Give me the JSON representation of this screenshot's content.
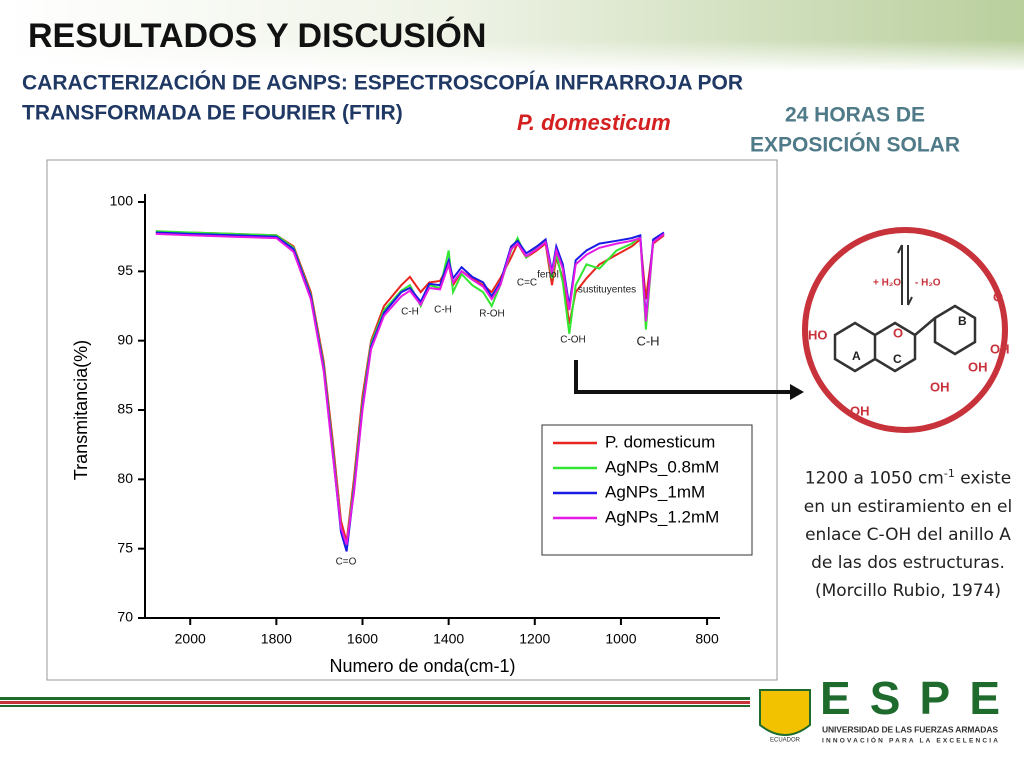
{
  "header": {
    "title": "RESULTADOS Y DISCUSIÓN",
    "subtitle_lines": [
      "CARACTERIZACIÓN DE AGNPS: ESPECTROSCOPÍA INFRARROJA POR",
      "TRANSFORMADA DE FOURIER (FTIR)"
    ],
    "species": "P. domesticum",
    "exposure_lines": [
      "24 HORAS DE",
      "EXPOSICIÓN SOLAR"
    ]
  },
  "chart_data": {
    "type": "line",
    "x": [
      2080,
      2000,
      1900,
      1800,
      1760,
      1720,
      1690,
      1670,
      1650,
      1637,
      1620,
      1600,
      1580,
      1550,
      1510,
      1490,
      1465,
      1445,
      1420,
      1400,
      1390,
      1370,
      1345,
      1320,
      1300,
      1280,
      1255,
      1240,
      1220,
      1195,
      1175,
      1160,
      1150,
      1135,
      1120,
      1105,
      1080,
      1050,
      1010,
      975,
      955,
      942,
      925,
      900
    ],
    "series": [
      {
        "name": "P. domesticum",
        "color": "#e8261f",
        "values": [
          97.8,
          97.8,
          97.7,
          97.6,
          96.8,
          93.5,
          88.5,
          83,
          77,
          75.5,
          80,
          86,
          90,
          92.5,
          94,
          94.6,
          93.5,
          94.2,
          94.3,
          95.5,
          94,
          95,
          94.5,
          94,
          93.5,
          94.5,
          96,
          97,
          96,
          96.5,
          97,
          94,
          96,
          94.5,
          91.2,
          93.5,
          94.5,
          95.5,
          96.2,
          96.8,
          97.3,
          93,
          97,
          97.6
        ]
      },
      {
        "name": "AgNPs_0.8mM",
        "color": "#33e633",
        "values": [
          97.9,
          97.8,
          97.7,
          97.6,
          96.7,
          93.3,
          88.2,
          82.5,
          76.5,
          75.2,
          79.5,
          85.5,
          89.8,
          92.2,
          93.6,
          94,
          92.5,
          94,
          93.8,
          96.5,
          93.5,
          94.8,
          94,
          93.5,
          92.5,
          94,
          96.5,
          97.4,
          96,
          96.8,
          97.2,
          94.5,
          96.3,
          94.2,
          90.5,
          94,
          95.5,
          95.2,
          96.5,
          97,
          97.5,
          90.8,
          97.2,
          97.7
        ]
      },
      {
        "name": "AgNPs_1mM",
        "color": "#1a1ae6",
        "values": [
          97.8,
          97.7,
          97.6,
          97.5,
          96.6,
          93.2,
          88,
          82.2,
          76.2,
          74.8,
          79.2,
          85.2,
          89.6,
          92,
          93.5,
          93.8,
          92.8,
          94.1,
          94,
          95.8,
          94.5,
          95.3,
          94.6,
          94.2,
          93.2,
          94.2,
          96.8,
          97.2,
          96.3,
          96.8,
          97.3,
          95,
          96.8,
          95.5,
          92.5,
          95.8,
          96.5,
          97,
          97.2,
          97.4,
          97.6,
          91.6,
          97.3,
          97.8
        ]
      },
      {
        "name": "AgNPs_1.2mM",
        "color": "#e619e6",
        "values": [
          97.7,
          97.6,
          97.5,
          97.4,
          96.4,
          93,
          87.8,
          82,
          76.5,
          75.3,
          79,
          85,
          89.4,
          91.8,
          93.2,
          93.6,
          92.6,
          93.8,
          93.7,
          95.5,
          94.2,
          95,
          94.4,
          93.9,
          93,
          94,
          96.6,
          97,
          96.1,
          96.6,
          97.1,
          94.8,
          96.5,
          95.2,
          92.2,
          95.5,
          96.2,
          96.7,
          97,
          97.2,
          97.4,
          91.4,
          97.1,
          97.7
        ]
      }
    ],
    "xlim": [
      2105,
      770
    ],
    "ylim": [
      70,
      100
    ],
    "xticks": [
      2000,
      1800,
      1600,
      1400,
      1200,
      1000,
      800
    ],
    "yticks": [
      70,
      75,
      80,
      85,
      90,
      95,
      100
    ],
    "x_label": "Numero de onda(cm-1)",
    "y_label": "Transmitancia(%)",
    "annotations": [
      "C=O",
      "C-H",
      "C-H",
      "R-OH",
      "C=C",
      "fenol",
      "sustituyentes",
      "C-OH",
      "C-H"
    ]
  },
  "side_note": {
    "range": "1200 a 1050 cm",
    "exponent": "-1",
    "text": "existe en un estiramiento en el enlace C-OH del anillo A de las dos estructuras. (Morcillo Rubio, 1974)"
  },
  "molecule": {
    "labels": [
      "+ H₂O",
      "- H₂O",
      "HO",
      "O",
      "O",
      "OH",
      "OH",
      "OH",
      "OH",
      "A",
      "B",
      "C"
    ]
  },
  "footer": {
    "logo": "ESPE",
    "university": "UNIVERSIDAD DE LAS FUERZAS ARMADAS",
    "motto": "INNOVACIÓN PARA LA EXCELENCIA",
    "crest": "ECUADOR"
  }
}
